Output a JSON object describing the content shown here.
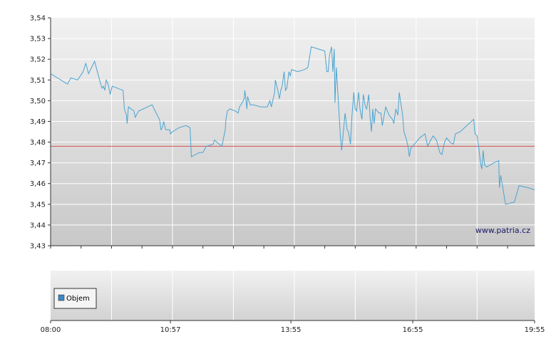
{
  "chart_data": [
    {
      "type": "line",
      "title": "",
      "xlabel": "",
      "ylabel": "",
      "ylim": [
        3.43,
        3.54
      ],
      "y_ticks": [
        "3,43",
        "3,44",
        "3,45",
        "3,46",
        "3,47",
        "3,48",
        "3,49",
        "3,50",
        "3,51",
        "3,52",
        "3,53",
        "3,54"
      ],
      "grid": true,
      "reference_line": {
        "value": 3.478,
        "color": "#d9534f"
      },
      "series": [
        {
          "color": "#4aa3d0",
          "points": [
            [
              "08:00",
              3.513
            ],
            [
              "08:25",
              3.508
            ],
            [
              "08:30",
              3.511
            ],
            [
              "08:40",
              3.51
            ],
            [
              "08:48",
              3.514
            ],
            [
              "08:52",
              3.518
            ],
            [
              "08:56",
              3.513
            ],
            [
              "09:05",
              3.519
            ],
            [
              "09:14",
              3.508
            ],
            [
              "09:16",
              3.506
            ],
            [
              "09:18",
              3.507
            ],
            [
              "09:20",
              3.505
            ],
            [
              "09:22",
              3.51
            ],
            [
              "09:25",
              3.508
            ],
            [
              "09:28",
              3.503
            ],
            [
              "09:31",
              3.507
            ],
            [
              "09:47",
              3.505
            ],
            [
              "09:49",
              3.496
            ],
            [
              "09:52",
              3.493
            ],
            [
              "09:53",
              3.489
            ],
            [
              "09:55",
              3.497
            ],
            [
              "10:03",
              3.495
            ],
            [
              "10:05",
              3.492
            ],
            [
              "10:10",
              3.495
            ],
            [
              "10:30",
              3.498
            ],
            [
              "10:39",
              3.492
            ],
            [
              "10:41",
              3.491
            ],
            [
              "10:43",
              3.486
            ],
            [
              "10:45",
              3.487
            ],
            [
              "10:47",
              3.49
            ],
            [
              "10:50",
              3.486
            ],
            [
              "10:56",
              3.486
            ],
            [
              "10:57",
              3.484
            ],
            [
              "11:00",
              3.485
            ],
            [
              "11:10",
              3.487
            ],
            [
              "11:20",
              3.488
            ],
            [
              "11:26",
              3.487
            ],
            [
              "11:28",
              3.473
            ],
            [
              "11:40",
              3.475
            ],
            [
              "11:45",
              3.475
            ],
            [
              "11:50",
              3.478
            ],
            [
              "12:00",
              3.479
            ],
            [
              "12:02",
              3.481
            ],
            [
              "12:09",
              3.479
            ],
            [
              "12:13",
              3.478
            ],
            [
              "12:18",
              3.486
            ],
            [
              "12:19",
              3.491
            ],
            [
              "12:21",
              3.495
            ],
            [
              "12:25",
              3.496
            ],
            [
              "12:33",
              3.495
            ],
            [
              "12:37",
              3.494
            ],
            [
              "12:39",
              3.497
            ],
            [
              "12:43",
              3.499
            ],
            [
              "12:46",
              3.501
            ],
            [
              "12:47",
              3.505
            ],
            [
              "12:50",
              3.496
            ],
            [
              "12:51",
              3.502
            ],
            [
              "12:55",
              3.498
            ],
            [
              "13:00",
              3.498
            ],
            [
              "13:10",
              3.497
            ],
            [
              "13:20",
              3.497
            ],
            [
              "13:24",
              3.5
            ],
            [
              "13:26",
              3.497
            ],
            [
              "13:31",
              3.504
            ],
            [
              "13:32",
              3.51
            ],
            [
              "13:35",
              3.506
            ],
            [
              "13:38",
              3.501
            ],
            [
              "13:40",
              3.505
            ],
            [
              "13:42",
              3.507
            ],
            [
              "13:45",
              3.514
            ],
            [
              "13:47",
              3.505
            ],
            [
              "13:49",
              3.506
            ],
            [
              "13:52",
              3.514
            ],
            [
              "13:54",
              3.512
            ],
            [
              "13:56",
              3.515
            ],
            [
              "14:05",
              3.514
            ],
            [
              "14:15",
              3.515
            ],
            [
              "14:20",
              3.516
            ],
            [
              "14:25",
              3.526
            ],
            [
              "14:35",
              3.525
            ],
            [
              "14:45",
              3.524
            ],
            [
              "14:48",
              3.514
            ],
            [
              "14:50",
              3.514
            ],
            [
              "14:52",
              3.522
            ],
            [
              "14:55",
              3.526
            ],
            [
              "14:57",
              3.514
            ],
            [
              "14:59",
              3.525
            ],
            [
              "15:00",
              3.499
            ],
            [
              "15:02",
              3.516
            ],
            [
              "15:05",
              3.5
            ],
            [
              "15:08",
              3.483
            ],
            [
              "15:10",
              3.476
            ],
            [
              "15:12",
              3.483
            ],
            [
              "15:15",
              3.494
            ],
            [
              "15:18",
              3.486
            ],
            [
              "15:20",
              3.485
            ],
            [
              "15:23",
              3.479
            ],
            [
              "15:25",
              3.492
            ],
            [
              "15:28",
              3.504
            ],
            [
              "15:30",
              3.496
            ],
            [
              "15:32",
              3.495
            ],
            [
              "15:35",
              3.504
            ],
            [
              "15:37",
              3.496
            ],
            [
              "15:40",
              3.491
            ],
            [
              "15:42",
              3.503
            ],
            [
              "15:45",
              3.497
            ],
            [
              "15:47",
              3.496
            ],
            [
              "15:50",
              3.503
            ],
            [
              "15:52",
              3.492
            ],
            [
              "15:54",
              3.485
            ],
            [
              "15:56",
              3.496
            ],
            [
              "15:58",
              3.489
            ],
            [
              "16:00",
              3.496
            ],
            [
              "16:05",
              3.494
            ],
            [
              "16:08",
              3.494
            ],
            [
              "16:10",
              3.488
            ],
            [
              "16:15",
              3.497
            ],
            [
              "16:20",
              3.493
            ],
            [
              "16:25",
              3.491
            ],
            [
              "16:27",
              3.489
            ],
            [
              "16:30",
              3.496
            ],
            [
              "16:33",
              3.493
            ],
            [
              "16:35",
              3.504
            ],
            [
              "16:40",
              3.493
            ],
            [
              "16:42",
              3.485
            ],
            [
              "16:45",
              3.482
            ],
            [
              "16:48",
              3.478
            ],
            [
              "16:50",
              3.473
            ],
            [
              "16:52",
              3.477
            ],
            [
              "17:00",
              3.48
            ],
            [
              "17:05",
              3.482
            ],
            [
              "17:13",
              3.484
            ],
            [
              "17:17",
              3.478
            ],
            [
              "17:20",
              3.48
            ],
            [
              "17:25",
              3.483
            ],
            [
              "17:30",
              3.481
            ],
            [
              "17:35",
              3.475
            ],
            [
              "17:38",
              3.474
            ],
            [
              "17:42",
              3.48
            ],
            [
              "17:45",
              3.482
            ],
            [
              "17:50",
              3.48
            ],
            [
              "17:55",
              3.479
            ],
            [
              "17:58",
              3.484
            ],
            [
              "18:05",
              3.485
            ],
            [
              "18:15",
              3.488
            ],
            [
              "18:25",
              3.491
            ],
            [
              "18:27",
              3.484
            ],
            [
              "18:30",
              3.483
            ],
            [
              "18:33",
              3.476
            ],
            [
              "18:35",
              3.47
            ],
            [
              "18:37",
              3.467
            ],
            [
              "18:39",
              3.476
            ],
            [
              "18:41",
              3.469
            ],
            [
              "18:44",
              3.468
            ],
            [
              "18:55",
              3.47
            ],
            [
              "19:02",
              3.471
            ],
            [
              "19:03",
              3.458
            ],
            [
              "19:05",
              3.464
            ],
            [
              "19:12",
              3.45
            ],
            [
              "19:25",
              3.451
            ],
            [
              "19:32",
              3.459
            ],
            [
              "19:45",
              3.458
            ],
            [
              "19:55",
              3.457
            ]
          ]
        }
      ],
      "x_range": [
        "08:00",
        "19:55"
      ],
      "watermark": "www.patria.cz"
    },
    {
      "type": "bar",
      "title": "",
      "legend": {
        "label": "Objem",
        "position": "top-left",
        "color": "#3a88c8"
      },
      "x_ticks": [
        "08:00",
        "10:57",
        "13:55",
        "16:55",
        "19:55"
      ],
      "grid": true,
      "values": []
    }
  ]
}
